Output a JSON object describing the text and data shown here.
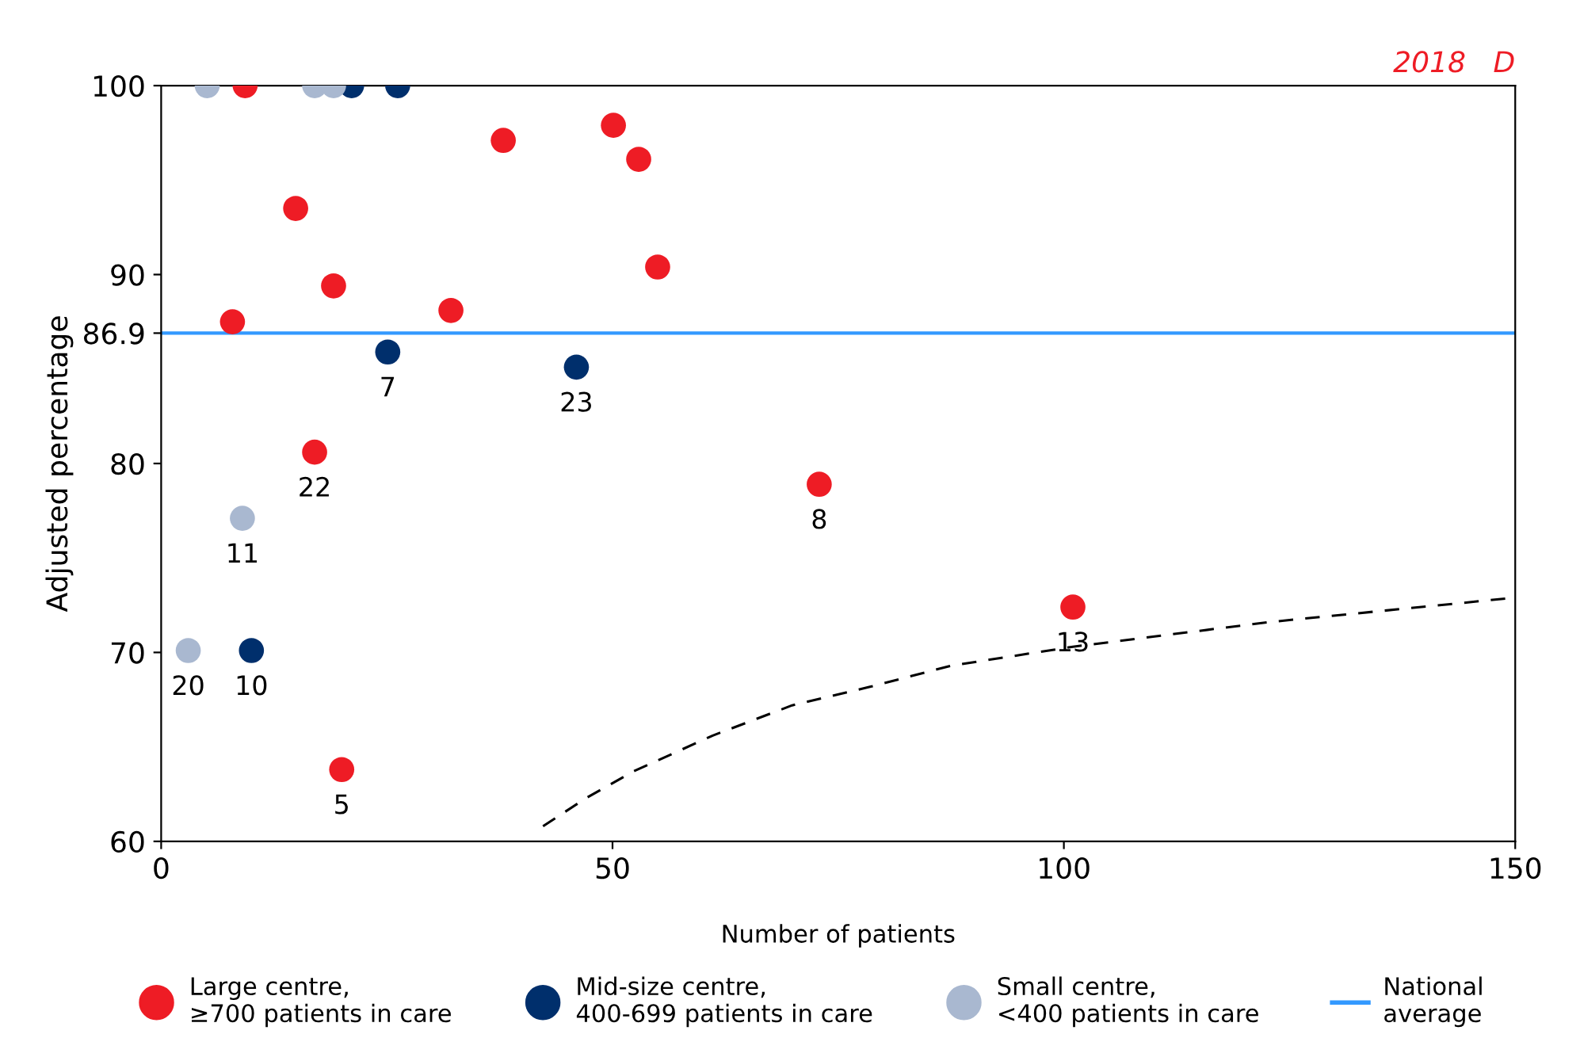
{
  "chart_data": {
    "type": "scatter",
    "xlabel": "Number of patients",
    "ylabel": "Adjusted percentage",
    "xlim": [
      0,
      150
    ],
    "xticks": [
      0,
      50,
      100,
      150
    ],
    "ylim": [
      60,
      100
    ],
    "yticks": [
      60,
      70,
      80,
      {
        "value": 86.9,
        "label": "86.9"
      },
      90,
      100
    ],
    "marker": "circle",
    "legend": "bottom",
    "grid": false,
    "series": [
      {
        "name": "Large centre,\n≥700 patients in care",
        "color": "#ee1c25",
        "x": [
          9.3,
          14.9,
          7.9,
          19.1,
          32.1,
          37.9,
          50.1,
          52.9,
          55.0,
          17.0,
          20.0,
          72.9,
          101.0
        ],
        "values": [
          100,
          93.5,
          87.5,
          89.4,
          88.1,
          97.1,
          97.9,
          96.1,
          90.4,
          80.6,
          63.8,
          78.9,
          72.4
        ]
      },
      {
        "name": "Mid-size centre,\n400-699 patients in care",
        "color": "#002f6c",
        "x": [
          21.1,
          26.2,
          25.1,
          46.0,
          10.0
        ],
        "values": [
          100,
          100,
          85.9,
          85.1,
          70.1
        ]
      },
      {
        "name": "Small centre,\n<400 patients in care",
        "color": "#a9b8d0",
        "x": [
          5.1,
          17.0,
          19.1,
          9.0,
          3.0
        ],
        "values": [
          100,
          100,
          100,
          77.1,
          70.1
        ]
      },
      {
        "type": "line",
        "color": "#000000",
        "line_style": "dashed",
        "marker": "none",
        "x": [
          42.3,
          47.1,
          52.3,
          61.1,
          69.9,
          78.7,
          87.5,
          101,
          122.6,
          150
        ],
        "values": [
          60.8,
          62.3,
          63.7,
          65.6,
          67.2,
          68.2,
          69.3,
          70.3,
          71.6,
          72.9
        ]
      }
    ],
    "ref_lines": [
      {
        "axis": "y",
        "value": 86.9,
        "label": "National\naverage",
        "color": "#3399ff",
        "line_style": "solid"
      }
    ],
    "annotations": [
      "2018   D",
      {
        "text": "7",
        "x": 25.1,
        "y": 85.9
      },
      {
        "text": "23",
        "x": 46.0,
        "y": 85.1
      },
      {
        "text": "22",
        "x": 17.0,
        "y": 80.6
      },
      {
        "text": "11",
        "x": 9.0,
        "y": 77.1
      },
      {
        "text": "20",
        "x": 3.0,
        "y": 70.1
      },
      {
        "text": "10",
        "x": 10.0,
        "y": 70.1
      },
      {
        "text": "5",
        "x": 20.0,
        "y": 63.8
      },
      {
        "text": "8",
        "x": 72.9,
        "y": 78.9
      },
      {
        "text": "13",
        "x": 101.0,
        "y": 72.4
      }
    ]
  }
}
